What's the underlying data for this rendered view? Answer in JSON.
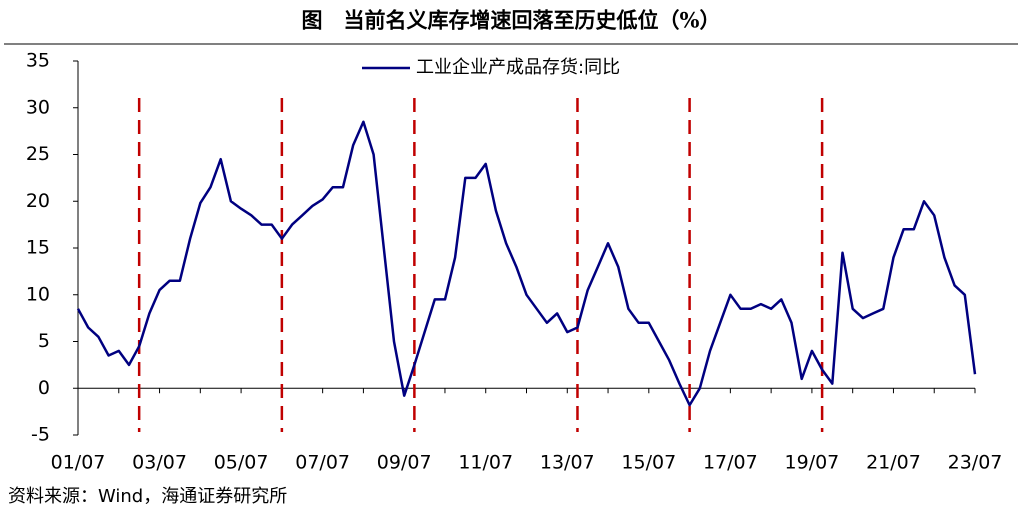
{
  "chart_data": {
    "type": "line",
    "title": "图　当前名义库存增速回落至历史低位（%）",
    "source": "资料来源：Wind，海通证券研究所",
    "x": [
      "01/07",
      "01/10",
      "02/01",
      "02/04",
      "02/07",
      "02/10",
      "03/01",
      "03/04",
      "03/07",
      "03/10",
      "04/01",
      "04/04",
      "04/07",
      "04/10",
      "05/01",
      "05/04",
      "05/07",
      "05/10",
      "06/01",
      "06/04",
      "06/07",
      "06/10",
      "07/01",
      "07/04",
      "07/07",
      "07/10",
      "08/01",
      "08/04",
      "08/07",
      "08/10",
      "09/01",
      "09/04",
      "09/07",
      "09/10",
      "10/01",
      "10/04",
      "10/07",
      "10/10",
      "11/01",
      "11/04",
      "11/07",
      "11/10",
      "12/01",
      "12/04",
      "12/07",
      "12/10",
      "13/01",
      "13/04",
      "13/07",
      "13/10",
      "14/01",
      "14/04",
      "14/07",
      "14/10",
      "15/01",
      "15/04",
      "15/07",
      "15/10",
      "16/01",
      "16/04",
      "16/07",
      "16/10",
      "17/01",
      "17/04",
      "17/07",
      "17/10",
      "18/01",
      "18/04",
      "18/07",
      "18/10",
      "19/01",
      "19/04",
      "19/07",
      "19/10",
      "20/01",
      "20/04",
      "20/07",
      "20/10",
      "21/01",
      "21/04",
      "21/07",
      "21/10",
      "22/01",
      "22/04",
      "22/07",
      "22/10",
      "23/01",
      "23/04",
      "23/07"
    ],
    "series": [
      {
        "name": "工业企业产成品存货:同比",
        "color": "#000080",
        "values": [
          8.5,
          6.5,
          5.5,
          3.5,
          4,
          2.5,
          4.5,
          8,
          10.5,
          11.5,
          11.5,
          16,
          19.8,
          21.5,
          24.5,
          20,
          19.2,
          18.5,
          17.5,
          17.5,
          16,
          17.5,
          18.5,
          19.5,
          20.2,
          21.5,
          21.5,
          26,
          28.5,
          25,
          15,
          5,
          -0.8,
          2.5,
          6,
          9.5,
          9.5,
          14,
          22.5,
          22.5,
          24,
          19,
          15.5,
          13,
          10,
          8.5,
          7,
          8,
          6,
          6.5,
          10.5,
          13,
          15.5,
          13,
          8.5,
          7,
          7,
          5,
          3,
          0.5,
          -1.8,
          0,
          4,
          7,
          10,
          8.5,
          8.5,
          9,
          8.5,
          9.5,
          7,
          1,
          4,
          2,
          0.5,
          14.5,
          8.5,
          7.5,
          8,
          8.5,
          14,
          17,
          17,
          20,
          18.5,
          14,
          11,
          10,
          1.5
        ]
      }
    ],
    "xticks": [
      "01/07",
      "03/07",
      "05/07",
      "07/07",
      "09/07",
      "11/07",
      "13/07",
      "15/07",
      "17/07",
      "19/07",
      "21/07",
      "23/07"
    ],
    "ylim": [
      -5,
      35
    ],
    "yticks": [
      -5,
      0,
      5,
      10,
      15,
      20,
      25,
      30,
      35
    ],
    "vlines": [
      "03/01",
      "06/07",
      "09/10",
      "13/10",
      "16/07",
      "19/10"
    ],
    "vline_color": "#c00000",
    "legend": "top"
  }
}
